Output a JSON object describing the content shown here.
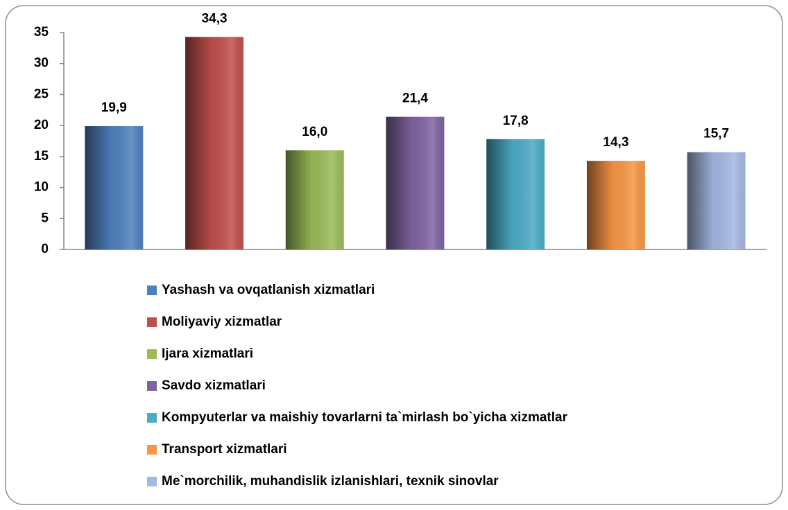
{
  "chart_data": {
    "type": "bar",
    "series": [
      {
        "name": "Yashash va ovqatlanish xizmatlari",
        "color": "#4f81bd",
        "values": [
          19.9
        ],
        "value_labels": [
          "19,9"
        ]
      },
      {
        "name": "Moliyaviy xizmatlar",
        "color": "#c0504d",
        "values": [
          34.3
        ],
        "value_labels": [
          "34,3"
        ]
      },
      {
        "name": "Ijara xizmatlari",
        "color": "#9bbb59",
        "values": [
          16.0
        ],
        "value_labels": [
          "16,0"
        ]
      },
      {
        "name": "Savdo xizmatlari",
        "color": "#8064a2",
        "values": [
          21.4
        ],
        "value_labels": [
          "21,4"
        ]
      },
      {
        "name": "Kompyuterlar va maishiy tovarlarni ta`mirlash bo`yicha xizmatlar",
        "color": "#4bacc6",
        "values": [
          17.8
        ],
        "value_labels": [
          "17,8"
        ]
      },
      {
        "name": "Transport xizmatlari",
        "color": "#f79646",
        "values": [
          14.3
        ],
        "value_labels": [
          "14,3"
        ]
      },
      {
        "name": "Me`morchilik, muhandislik izlanishlari, texnik sinovlar",
        "color": "#a5b8e2",
        "values": [
          15.7
        ],
        "value_labels": [
          "15,7"
        ]
      }
    ],
    "ylim": [
      0,
      35
    ],
    "yticks": [
      0,
      5,
      10,
      15,
      20,
      25,
      30,
      35
    ],
    "legend": "bottom"
  }
}
